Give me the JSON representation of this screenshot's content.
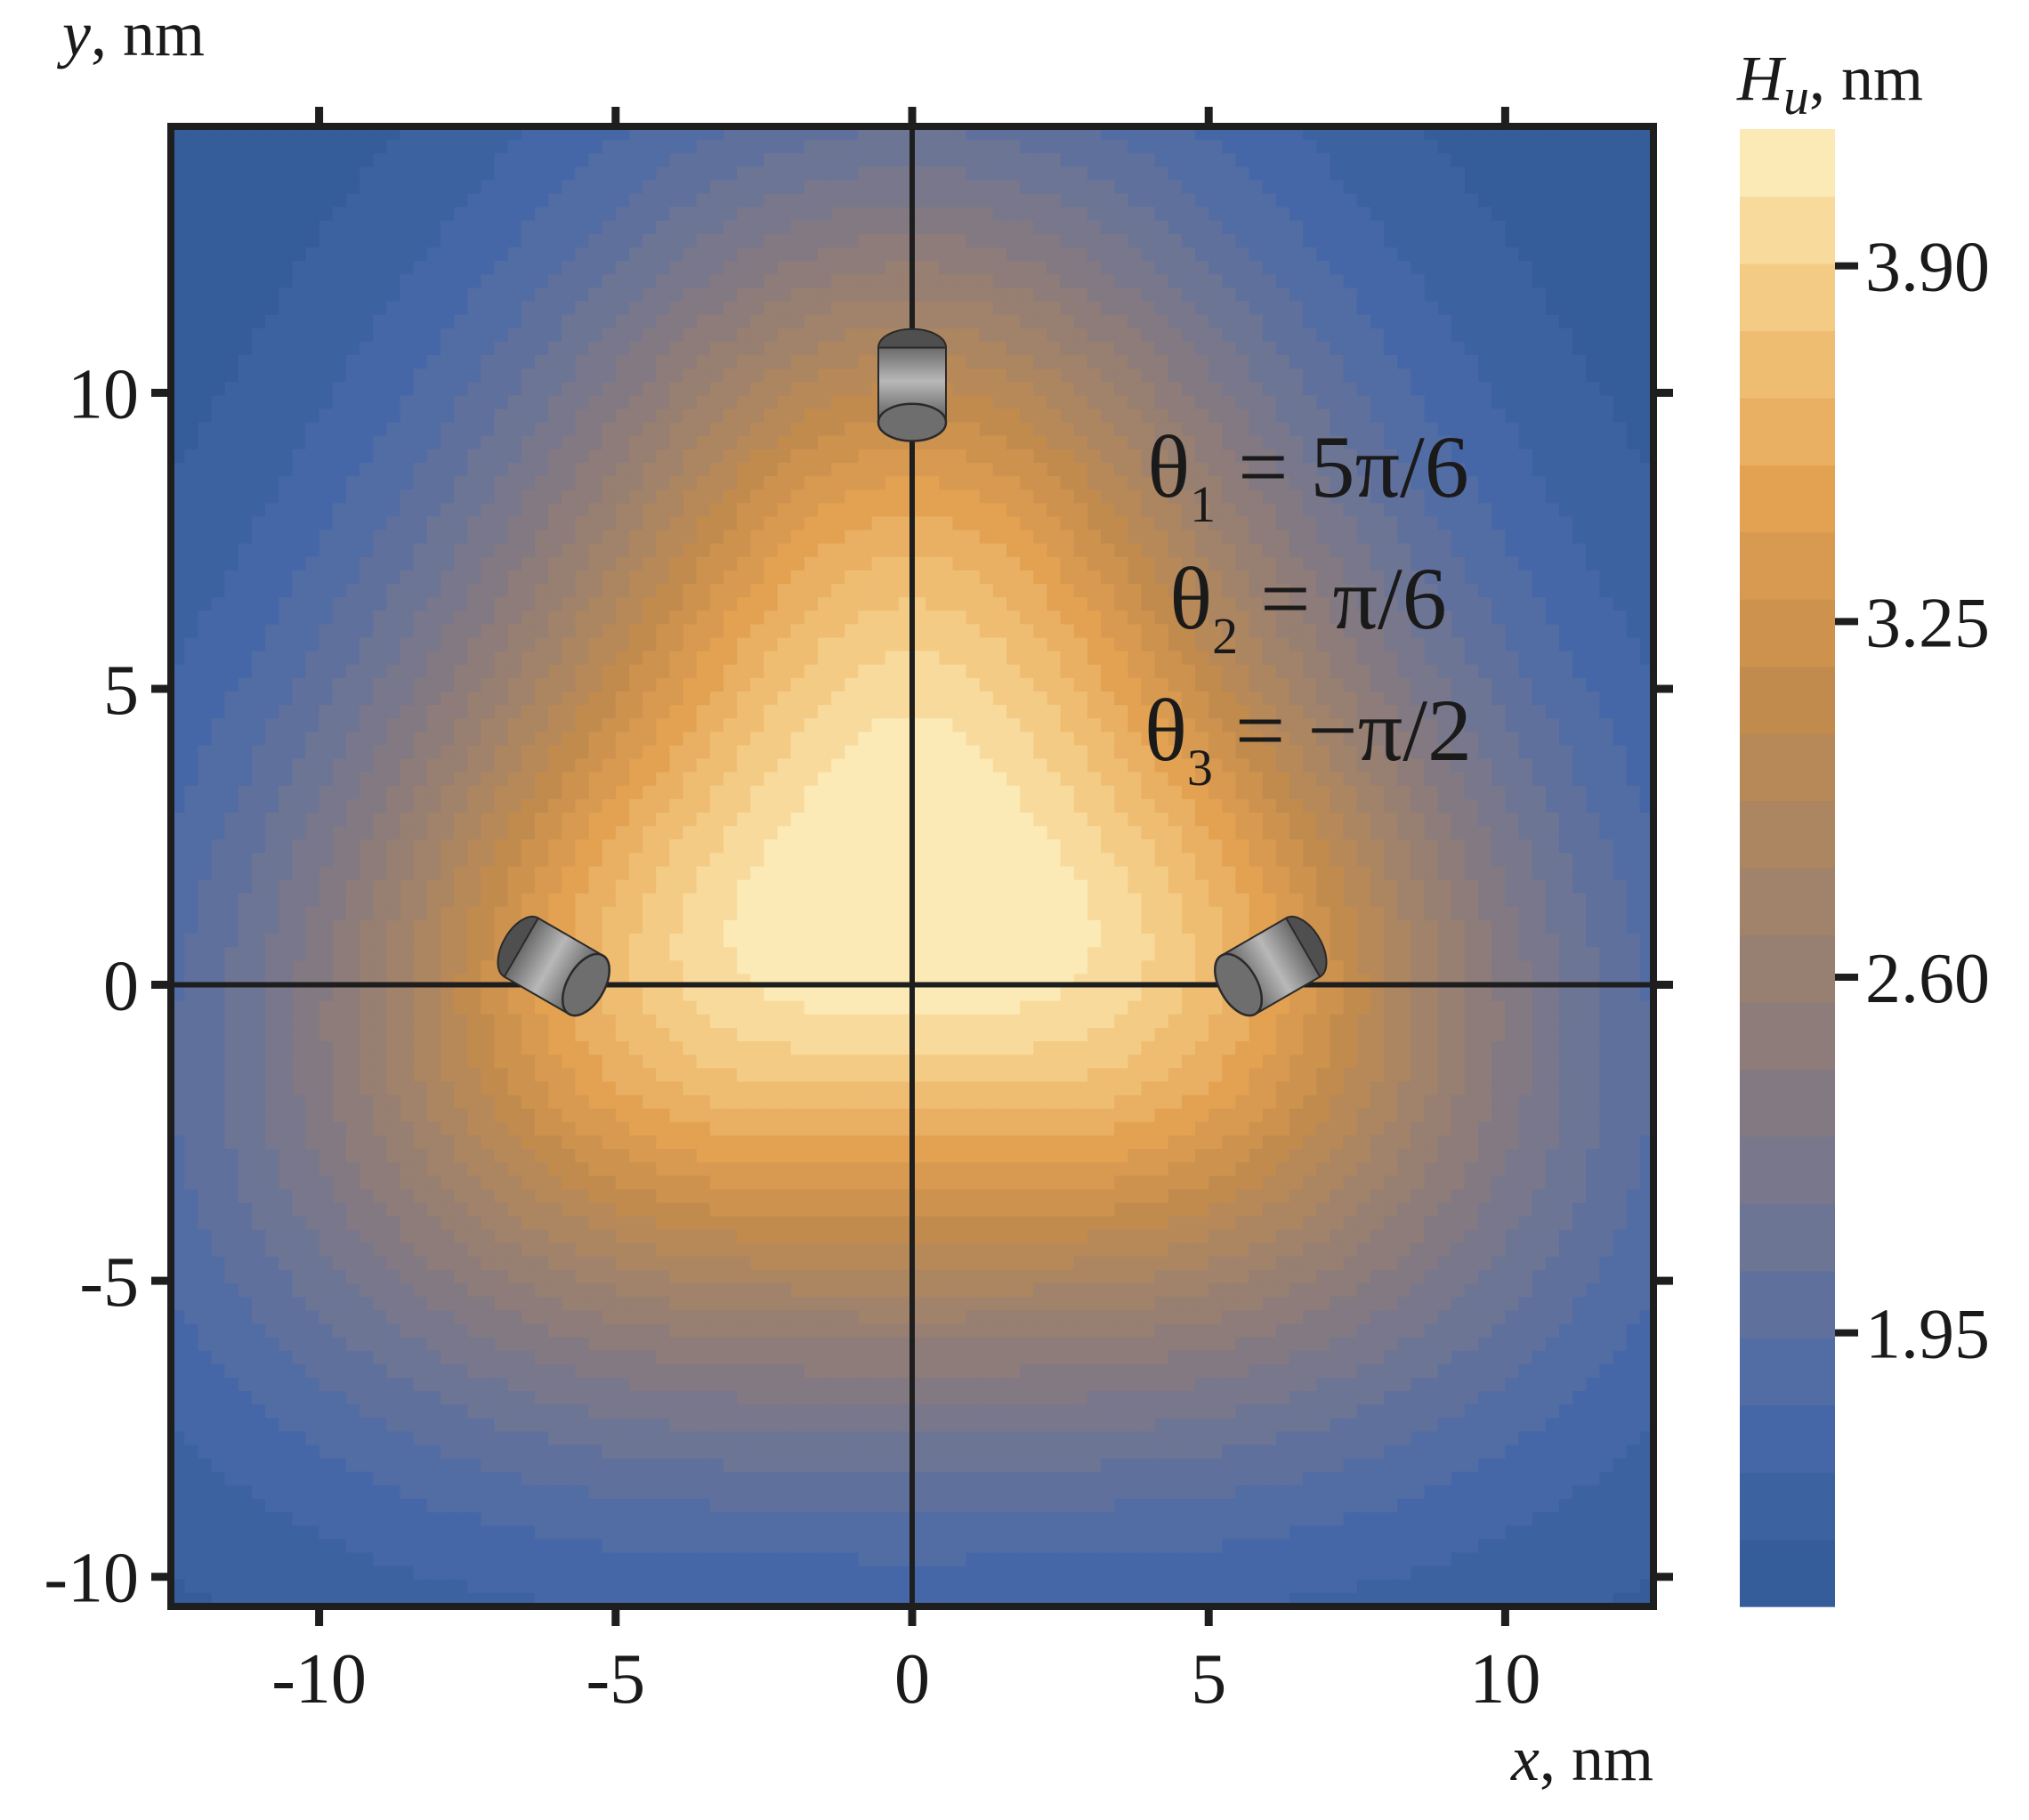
{
  "chart_data": {
    "type": "heatmap",
    "subtype": "filled-contour",
    "x_axis": {
      "label_var": "x",
      "label_unit": ", nm",
      "range": [
        -12.5,
        12.5
      ],
      "ticks": [
        -10,
        -5,
        0,
        5,
        10
      ]
    },
    "y_axis": {
      "label_var": "y",
      "label_unit": ", nm",
      "range": [
        -10.5,
        14.5
      ],
      "ticks": [
        -10,
        -5,
        0,
        5,
        10
      ]
    },
    "colorbar": {
      "label_var": "H",
      "label_sub": "u",
      "label_unit": ", nm",
      "range": [
        1.45,
        4.15
      ],
      "ticks": [
        "3.90",
        "3.25",
        "2.60",
        "1.95"
      ],
      "levels": 22,
      "colors": [
        "#2f5a96",
        "#4868a9",
        "#6d7595",
        "#8a7b7b",
        "#a68466",
        "#c58c4c",
        "#e3a152",
        "#f3c77e",
        "#fdf1c3"
      ]
    },
    "grid": false,
    "cross_lines": {
      "x": 0,
      "y": 0,
      "color": "#1e1e1e"
    },
    "rods": [
      {
        "x": 0.0,
        "y": 9.5,
        "dir_deg": -90
      },
      {
        "x": -5.5,
        "y": 0.0,
        "dir_deg": 210
      },
      {
        "x": 5.5,
        "y": 0.0,
        "dir_deg": -30
      }
    ],
    "annotations": [
      {
        "sym": "θ",
        "sub": "1",
        "rest": " = 5π/6"
      },
      {
        "sym": "θ",
        "sub": "2",
        "rest": " = π/6"
      },
      {
        "sym": "θ",
        "sub": "3",
        "rest": " = −π/2"
      }
    ]
  }
}
